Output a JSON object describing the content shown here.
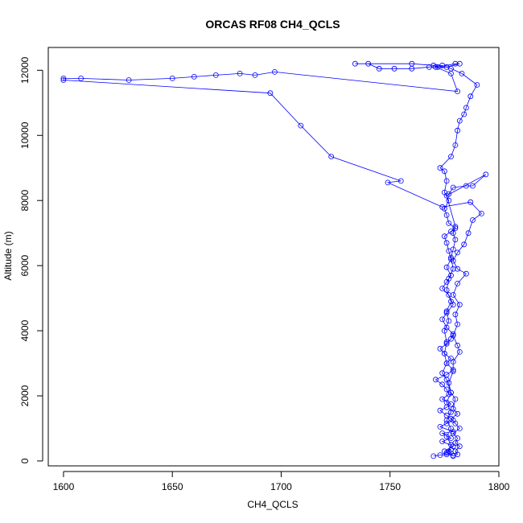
{
  "chart_data": {
    "type": "line",
    "title": "ORCAS RF08 CH4_QCLS",
    "xlabel": "CH4_QCLS",
    "ylabel": "Altitude (m)",
    "xlim": [
      1593,
      1800
    ],
    "ylim": [
      -150,
      12700
    ],
    "x_ticks": [
      1600,
      1650,
      1700,
      1750,
      1800
    ],
    "y_ticks": [
      0,
      2000,
      4000,
      6000,
      8000,
      10000,
      12000
    ],
    "grid": false,
    "legend": "none",
    "marker": "open-circle",
    "series_color": "#0000ff",
    "series": [
      {
        "points": [
          [
            1770,
            150
          ],
          [
            1773,
            180
          ],
          [
            1776,
            200
          ],
          [
            1779,
            170
          ],
          [
            1776,
            250
          ],
          [
            1778,
            350
          ],
          [
            1775,
            300
          ],
          [
            1779,
            450
          ],
          [
            1774,
            600
          ],
          [
            1778,
            700
          ],
          [
            1774,
            850
          ],
          [
            1779,
            900
          ],
          [
            1773,
            1050
          ],
          [
            1776,
            1150
          ],
          [
            1779,
            1250
          ],
          [
            1776,
            1400
          ],
          [
            1773,
            1550
          ],
          [
            1776,
            1650
          ],
          [
            1778,
            1750
          ],
          [
            1774,
            1900
          ],
          [
            1777,
            2050
          ],
          [
            1776,
            2200
          ],
          [
            1774,
            2350
          ],
          [
            1771,
            2500
          ],
          [
            1776,
            2650
          ],
          [
            1779,
            2800
          ],
          [
            1776,
            3000
          ],
          [
            1778,
            3150
          ],
          [
            1775,
            3300
          ],
          [
            1773,
            3450
          ],
          [
            1776,
            3600
          ],
          [
            1778,
            3750
          ],
          [
            1779,
            3900
          ],
          [
            1776,
            4100
          ],
          [
            1774,
            4350
          ],
          [
            1776,
            4550
          ],
          [
            1779,
            4800
          ],
          [
            1777,
            5100
          ],
          [
            1774,
            5300
          ],
          [
            1776,
            5500
          ],
          [
            1778,
            5700
          ],
          [
            1776,
            5950
          ],
          [
            1778,
            6200
          ],
          [
            1777,
            6450
          ],
          [
            1776,
            6700
          ],
          [
            1775,
            6900
          ],
          [
            1778,
            7050
          ],
          [
            1780,
            7150
          ],
          [
            1777,
            7300
          ],
          [
            1776,
            7550
          ],
          [
            1775,
            7750
          ],
          [
            1777,
            8000
          ],
          [
            1775,
            8250
          ],
          [
            1776,
            8600
          ],
          [
            1775,
            8900
          ],
          [
            1773,
            9000
          ],
          [
            1778,
            9350
          ],
          [
            1780,
            9700
          ],
          [
            1781,
            10150
          ],
          [
            1782,
            10450
          ],
          [
            1784,
            10650
          ],
          [
            1785,
            10850
          ],
          [
            1787,
            11200
          ],
          [
            1790,
            11550
          ],
          [
            1783,
            11900
          ],
          [
            1778,
            12050
          ],
          [
            1774,
            12150
          ],
          [
            1768,
            12100
          ],
          [
            1760,
            12050
          ],
          [
            1752,
            12050
          ],
          [
            1745,
            12050
          ],
          [
            1740,
            12200
          ],
          [
            1734,
            12200
          ],
          [
            1760,
            12200
          ],
          [
            1770,
            12150
          ],
          [
            1772,
            12100
          ],
          [
            1780,
            12200
          ],
          [
            1782,
            12200
          ],
          [
            1776,
            12100
          ],
          [
            1771,
            12100
          ],
          [
            1778,
            11900
          ],
          [
            1781,
            11350
          ],
          [
            1697,
            11950
          ],
          [
            1688,
            11850
          ],
          [
            1681,
            11900
          ],
          [
            1670,
            11850
          ],
          [
            1660,
            11800
          ],
          [
            1650,
            11750
          ],
          [
            1630,
            11700
          ],
          [
            1608,
            11750
          ],
          [
            1600,
            11750
          ],
          [
            1600,
            11700
          ],
          [
            1695,
            11300
          ],
          [
            1709,
            10300
          ],
          [
            1723,
            9350
          ],
          [
            1755,
            8600
          ],
          [
            1749,
            8550
          ],
          [
            1774,
            7800
          ],
          [
            1787,
            7950
          ],
          [
            1792,
            7600
          ],
          [
            1788,
            7400
          ],
          [
            1786,
            7000
          ],
          [
            1784,
            6650
          ],
          [
            1781,
            6400
          ],
          [
            1779,
            6150
          ],
          [
            1781,
            5900
          ],
          [
            1785,
            5750
          ],
          [
            1781,
            5450
          ],
          [
            1779,
            5100
          ],
          [
            1782,
            4800
          ],
          [
            1780,
            4500
          ],
          [
            1781,
            4200
          ],
          [
            1779,
            3850
          ],
          [
            1781,
            3550
          ],
          [
            1782,
            3350
          ],
          [
            1779,
            3050
          ],
          [
            1779,
            2750
          ],
          [
            1777,
            2400
          ],
          [
            1778,
            2100
          ],
          [
            1780,
            1900
          ],
          [
            1779,
            1600
          ],
          [
            1781,
            1450
          ],
          [
            1778,
            1300
          ],
          [
            1780,
            1150
          ],
          [
            1782,
            1000
          ],
          [
            1779,
            850
          ],
          [
            1781,
            700
          ],
          [
            1780,
            550
          ],
          [
            1782,
            450
          ],
          [
            1780,
            300
          ],
          [
            1781,
            200
          ],
          [
            1779,
            150
          ],
          [
            1777,
            300
          ],
          [
            1778,
            500
          ],
          [
            1776,
            750
          ],
          [
            1778,
            1000
          ],
          [
            1776,
            1250
          ],
          [
            1778,
            1500
          ],
          [
            1776,
            1800
          ],
          [
            1778,
            2100
          ],
          [
            1776,
            2500
          ],
          [
            1774,
            2700
          ],
          [
            1776,
            3000
          ],
          [
            1775,
            3300
          ],
          [
            1776,
            3650
          ],
          [
            1775,
            4000
          ],
          [
            1777,
            4300
          ],
          [
            1776,
            4600
          ],
          [
            1778,
            4900
          ],
          [
            1776,
            5250
          ],
          [
            1777,
            5600
          ],
          [
            1779,
            5900
          ],
          [
            1778,
            6250
          ],
          [
            1779,
            6500
          ],
          [
            1780,
            6800
          ],
          [
            1779,
            7000
          ],
          [
            1780,
            7200
          ],
          [
            1776,
            8150
          ],
          [
            1794,
            8800
          ],
          [
            1788,
            8450
          ],
          [
            1785,
            8450
          ],
          [
            1779,
            8400
          ],
          [
            1777,
            8200
          ]
        ]
      }
    ]
  }
}
